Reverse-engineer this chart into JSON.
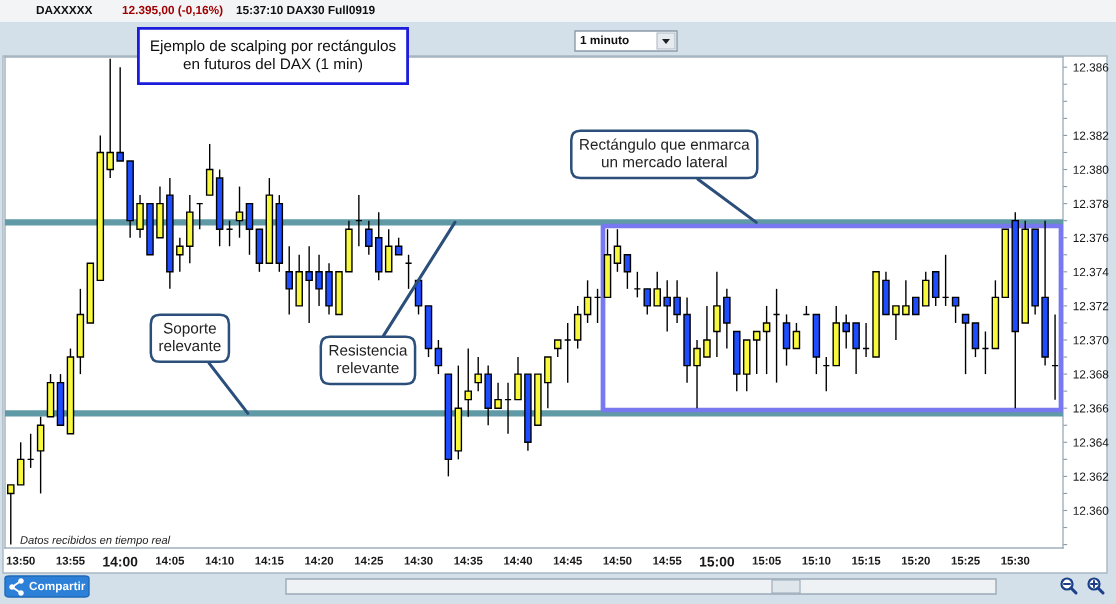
{
  "chart_data": {
    "type": "candlestick",
    "title": "Ejemplo de scalping por rectángulos\nen futuros del DAX (1 min)",
    "x": [
      13.8167,
      13.8333,
      13.85,
      13.8667,
      13.8833,
      13.9,
      13.9167,
      13.9333,
      13.95,
      13.9667,
      13.9833,
      14,
      14.0167,
      14.0333,
      14.05,
      14.0667,
      14.0833,
      14.1,
      14.1167,
      14.1333,
      14.15,
      14.1667,
      14.1833,
      14.2,
      14.2167,
      14.2333,
      14.25,
      14.2667,
      14.2833,
      14.3,
      14.3167,
      14.3333,
      14.35,
      14.3667,
      14.3833,
      14.4,
      14.4167,
      14.4333,
      14.45,
      14.4667,
      14.4833,
      14.5,
      14.5167,
      14.5333,
      14.55,
      14.5667,
      14.5833,
      14.6,
      14.6167,
      14.6333,
      14.65,
      14.6667,
      14.6833,
      14.7,
      14.7167,
      14.7333,
      14.75,
      14.7667,
      14.7833,
      14.8,
      14.8167,
      14.8333,
      14.85,
      14.8667,
      14.8833,
      14.9,
      14.9167,
      14.9333,
      14.95,
      14.9667,
      14.9833,
      15,
      15.0167,
      15.0333,
      15.05,
      15.0667,
      15.0833,
      15.1,
      15.1167,
      15.1333,
      15.15,
      15.1667,
      15.1833,
      15.2,
      15.2167,
      15.2333,
      15.25,
      15.2667,
      15.2833,
      15.3,
      15.3167,
      15.3333,
      15.35,
      15.3667,
      15.3833,
      15.4,
      15.4167,
      15.4333,
      15.45,
      15.4667,
      15.4833,
      15.5,
      15.5167,
      15.5333,
      15.55,
      15.5667
    ],
    "ohlc": [
      [
        12361,
        12361.5,
        12358,
        12361.5
      ],
      [
        12361.5,
        12364,
        12361.5,
        12363
      ],
      [
        12363,
        12364.5,
        12362.5,
        12363
      ],
      [
        12363.5,
        12365.5,
        12361,
        12365
      ],
      [
        12365.5,
        12368,
        12365.5,
        12367.5
      ],
      [
        12367.5,
        12368,
        12365,
        12365
      ],
      [
        12364.5,
        12369.5,
        12364.5,
        12369
      ],
      [
        12369,
        12373,
        12368,
        12371.5
      ],
      [
        12371,
        12374.5,
        12371,
        12374.5
      ],
      [
        12373.5,
        12382,
        12373.5,
        12381
      ],
      [
        12380,
        12386.5,
        12379.5,
        12381
      ],
      [
        12381,
        12386,
        12380.5,
        12380.5
      ],
      [
        12380.5,
        12380.5,
        12376,
        12377
      ],
      [
        12376.5,
        12378.5,
        12376,
        12378
      ],
      [
        12378,
        12378,
        12375,
        12375
      ],
      [
        12376,
        12379,
        12376,
        12378
      ],
      [
        12378.5,
        12379.5,
        12373,
        12374
      ],
      [
        12375,
        12376,
        12374,
        12375.5
      ],
      [
        12375.5,
        12378.5,
        12374.5,
        12377.5
      ],
      [
        12378,
        12378,
        12376.5,
        12378
      ],
      [
        12378.5,
        12381.5,
        12378.5,
        12380
      ],
      [
        12379.5,
        12380,
        12375.5,
        12376.5
      ],
      [
        12376.5,
        12377,
        12375.5,
        12376.5
      ],
      [
        12377,
        12379,
        12376,
        12377.5
      ],
      [
        12378,
        12378,
        12375,
        12376.5
      ],
      [
        12376.5,
        12376.5,
        12374,
        12374.5
      ],
      [
        12374.5,
        12379.5,
        12374.5,
        12378.5
      ],
      [
        12378,
        12378.5,
        12374,
        12374.5
      ],
      [
        12374,
        12375.5,
        12371.5,
        12373
      ],
      [
        12372,
        12375,
        12372,
        12374
      ],
      [
        12374,
        12375.5,
        12371,
        12373.5
      ],
      [
        12374,
        12375,
        12372,
        12373
      ],
      [
        12374,
        12374.5,
        12371.5,
        12372
      ],
      [
        12371.5,
        12374,
        12371.5,
        12374
      ],
      [
        12374,
        12377,
        12374,
        12376.5
      ],
      [
        12377,
        12378.5,
        12375.5,
        12377
      ],
      [
        12376.5,
        12377,
        12375,
        12375.5
      ],
      [
        12376,
        12377.5,
        12373.5,
        12374
      ],
      [
        12374,
        12376.5,
        12374,
        12375.5
      ],
      [
        12375.5,
        12376,
        12375,
        12375
      ],
      [
        12374.5,
        12375,
        12373,
        12374.5
      ],
      [
        12373.5,
        12373.5,
        12371.5,
        12372
      ],
      [
        12372,
        12372,
        12369,
        12369.5
      ],
      [
        12369.5,
        12370,
        12368,
        12368.5
      ],
      [
        12368,
        12368,
        12362,
        12363
      ],
      [
        12363.5,
        12368.5,
        12363,
        12366
      ],
      [
        12366.5,
        12369.5,
        12365.5,
        12367
      ],
      [
        12367.5,
        12369,
        12367,
        12368
      ],
      [
        12368,
        12368.5,
        12365,
        12366
      ],
      [
        12366,
        12367.5,
        12366,
        12366.5
      ],
      [
        12366.5,
        12367.5,
        12364.5,
        12366.5
      ],
      [
        12366.5,
        12369,
        12366.5,
        12368
      ],
      [
        12368,
        12368,
        12363.5,
        12364
      ],
      [
        12365,
        12368,
        12365,
        12368
      ],
      [
        12367.5,
        12369,
        12366,
        12369
      ],
      [
        12369.5,
        12370,
        12369,
        12370
      ],
      [
        12370,
        12371,
        12367.5,
        12370
      ],
      [
        12370,
        12372,
        12369.5,
        12371.5
      ],
      [
        12371.5,
        12373.5,
        12371,
        12372.5
      ],
      [
        12372.5,
        12373,
        12371,
        12372.5
      ],
      [
        12372.5,
        12376.5,
        12372.5,
        12375
      ],
      [
        12374.5,
        12376.5,
        12374,
        12375.5
      ],
      [
        12375,
        12375,
        12373,
        12374
      ],
      [
        12373,
        12374,
        12372.5,
        12373
      ],
      [
        12373,
        12373,
        12371.5,
        12372
      ],
      [
        12372,
        12374,
        12372,
        12373
      ],
      [
        12372.5,
        12373.5,
        12370.5,
        12372
      ],
      [
        12372.5,
        12373.5,
        12371,
        12371.5
      ],
      [
        12371.5,
        12372.5,
        12367.5,
        12368.5
      ],
      [
        12368.5,
        12370,
        12366,
        12369.5
      ],
      [
        12369,
        12372,
        12369,
        12370
      ],
      [
        12370.5,
        12374,
        12369,
        12372
      ],
      [
        12372.5,
        12373,
        12369.5,
        12371
      ],
      [
        12370.5,
        12370.5,
        12367,
        12368
      ],
      [
        12368,
        12370,
        12367,
        12370
      ],
      [
        12370,
        12370.5,
        12368,
        12370.5
      ],
      [
        12370.5,
        12372,
        12368,
        12371
      ],
      [
        12371.5,
        12373,
        12367.5,
        12371.5
      ],
      [
        12371,
        12371.5,
        12368.5,
        12369.5
      ],
      [
        12369.5,
        12371,
        12369.5,
        12370.5
      ],
      [
        12371.5,
        12372,
        12371.5,
        12371.5
      ],
      [
        12371.5,
        12371.5,
        12368,
        12369
      ],
      [
        12368.5,
        12369,
        12367,
        12368.5
      ],
      [
        12368.5,
        12372,
        12368.5,
        12371
      ],
      [
        12371,
        12371.5,
        12369.5,
        12370.5
      ],
      [
        12371,
        12371,
        12368,
        12369.5
      ],
      [
        12369.5,
        12371,
        12369,
        12369.5
      ],
      [
        12369,
        12374,
        12369,
        12374
      ],
      [
        12373.5,
        12374,
        12371.5,
        12371.5
      ],
      [
        12371.5,
        12372,
        12370,
        12372
      ],
      [
        12371.5,
        12373.5,
        12371.5,
        12372
      ],
      [
        12372.5,
        12372.5,
        12371.5,
        12371.5
      ],
      [
        12372,
        12374,
        12372,
        12373.5
      ],
      [
        12374,
        12374,
        12372,
        12372.5
      ],
      [
        12372.5,
        12375,
        12372,
        12372.5
      ],
      [
        12372.5,
        12372.5,
        12371,
        12372
      ],
      [
        12371.5,
        12371.5,
        12368,
        12371
      ],
      [
        12371,
        12371,
        12369,
        12369.5
      ],
      [
        12369.5,
        12370.5,
        12368,
        12369.5
      ],
      [
        12369.5,
        12373.5,
        12369.5,
        12372.5
      ],
      [
        12372.5,
        12376.5,
        12372.5,
        12376.5
      ],
      [
        12377,
        12377.5,
        12366,
        12370.5
      ],
      [
        12371,
        12377,
        12371,
        12376.5
      ],
      [
        12376.5,
        12376.5,
        12371.5,
        12372
      ],
      [
        12372.5,
        12377,
        12368.5,
        12369
      ],
      [
        12368.5,
        12371.5,
        12366.5,
        12368.5
      ]
    ],
    "colors": [
      "#f8f83c",
      "#f8f83c",
      "#000000",
      "#f8f83c",
      "#f8f83c",
      "#1e4cff",
      "#f8f83c",
      "#f8f83c",
      "#f8f83c",
      "#f8f83c",
      "#f8f83c",
      "#1e4cff",
      "#1e4cff",
      "#f8f83c",
      "#1e4cff",
      "#f8f83c",
      "#1e4cff",
      "#f8f83c",
      "#f8f83c",
      "#000000",
      "#f8f83c",
      "#1e4cff",
      "#000000",
      "#f8f83c",
      "#1e4cff",
      "#1e4cff",
      "#f8f83c",
      "#1e4cff",
      "#1e4cff",
      "#f8f83c",
      "#1e4cff",
      "#1e4cff",
      "#1e4cff",
      "#f8f83c",
      "#f8f83c",
      "#000000",
      "#1e4cff",
      "#1e4cff",
      "#f8f83c",
      "#1e4cff",
      "#000000",
      "#1e4cff",
      "#1e4cff",
      "#1e4cff",
      "#1e4cff",
      "#f8f83c",
      "#f8f83c",
      "#f8f83c",
      "#1e4cff",
      "#f8f83c",
      "#000000",
      "#f8f83c",
      "#1e4cff",
      "#f8f83c",
      "#f8f83c",
      "#f8f83c",
      "#000000",
      "#f8f83c",
      "#f8f83c",
      "#000000",
      "#f8f83c",
      "#f8f83c",
      "#1e4cff",
      "#000000",
      "#1e4cff",
      "#f8f83c",
      "#1e4cff",
      "#1e4cff",
      "#1e4cff",
      "#f8f83c",
      "#f8f83c",
      "#f8f83c",
      "#1e4cff",
      "#1e4cff",
      "#f8f83c",
      "#f8f83c",
      "#f8f83c",
      "#000000",
      "#1e4cff",
      "#f8f83c",
      "#000000",
      "#1e4cff",
      "#000000",
      "#f8f83c",
      "#1e4cff",
      "#1e4cff",
      "#000000",
      "#f8f83c",
      "#1e4cff",
      "#f8f83c",
      "#f8f83c",
      "#1e4cff",
      "#f8f83c",
      "#1e4cff",
      "#000000",
      "#1e4cff",
      "#1e4cff",
      "#1e4cff",
      "#000000",
      "#f8f83c",
      "#f8f83c",
      "#1e4cff",
      "#f8f83c",
      "#1e4cff",
      "#1e4cff",
      "#000000"
    ],
    "ref_lines": [
      {
        "axis": "y",
        "value": 12376.9,
        "color": "#5f9aa6"
      },
      {
        "axis": "y",
        "value": 12365.7,
        "color": "#5f9aa6"
      }
    ],
    "xlim": [
      13.807,
      15.58
    ],
    "xticks": [
      {
        "value": 13.8333,
        "label": "13:50"
      },
      {
        "value": 13.9167,
        "label": "13:55"
      },
      {
        "value": 14,
        "label": "14:00"
      },
      {
        "value": 14.0833,
        "label": "14:05"
      },
      {
        "value": 14.1667,
        "label": "14:10"
      },
      {
        "value": 14.25,
        "label": "14:15"
      },
      {
        "value": 14.3333,
        "label": "14:20"
      },
      {
        "value": 14.4167,
        "label": "14:25"
      },
      {
        "value": 14.5,
        "label": "14:30"
      },
      {
        "value": 14.5833,
        "label": "14:35"
      },
      {
        "value": 14.6667,
        "label": "14:40"
      },
      {
        "value": 14.75,
        "label": "14:45"
      },
      {
        "value": 14.8333,
        "label": "14:50"
      },
      {
        "value": 14.9167,
        "label": "14:55"
      },
      {
        "value": 15,
        "label": "15:00"
      },
      {
        "value": 15.0833,
        "label": "15:05"
      },
      {
        "value": 15.1667,
        "label": "15:10"
      },
      {
        "value": 15.25,
        "label": "15:15"
      },
      {
        "value": 15.3333,
        "label": "15:20"
      },
      {
        "value": 15.4167,
        "label": "15:25"
      },
      {
        "value": 15.5,
        "label": "15:30"
      }
    ],
    "ylim": [
      12357.8,
      12386.6
    ],
    "yticks": [
      {
        "value": 12358,
        "label": null
      },
      {
        "value": 12359,
        "label": null
      },
      {
        "value": 12360,
        "label": "12.360"
      },
      {
        "value": 12361,
        "label": null
      },
      {
        "value": 12362,
        "label": "12.362"
      },
      {
        "value": 12363,
        "label": null
      },
      {
        "value": 12364,
        "label": "12.364"
      },
      {
        "value": 12365,
        "label": null
      },
      {
        "value": 12366,
        "label": "12.366"
      },
      {
        "value": 12367,
        "label": null
      },
      {
        "value": 12368,
        "label": "12.368"
      },
      {
        "value": 12369,
        "label": null
      },
      {
        "value": 12370,
        "label": "12.370"
      },
      {
        "value": 12371,
        "label": null
      },
      {
        "value": 12372,
        "label": "12.372"
      },
      {
        "value": 12373,
        "label": null
      },
      {
        "value": 12374,
        "label": "12.374"
      },
      {
        "value": 12375,
        "label": null
      },
      {
        "value": 12376,
        "label": "12.376"
      },
      {
        "value": 12377,
        "label": null
      },
      {
        "value": 12378,
        "label": "12.378"
      },
      {
        "value": 12379,
        "label": null
      },
      {
        "value": 12380,
        "label": "12.380"
      },
      {
        "value": 12381,
        "label": null
      },
      {
        "value": 12382,
        "label": "12.382"
      },
      {
        "value": 12383,
        "label": null
      },
      {
        "value": 12384,
        "label": null
      },
      {
        "value": 12385,
        "label": null
      },
      {
        "value": 12386,
        "label": "12.386"
      }
    ],
    "annotations": [
      {
        "text": "Rectángulo que enmarca\nun mercado lateral",
        "x": 15.066,
        "y": 12376.9
      },
      {
        "text": "Soporte\nrelevante",
        "x": 14.214,
        "y": 12365.7
      },
      {
        "text": "Resistencia\nrelevante",
        "x": 14.561,
        "y": 12376.9
      },
      "Datos recibidos en tiempo real",
      "DAXXXXX",
      "12.395,00 (-0,16%)",
      "15:37:10 DAX30 Full0919",
      "1 minuto",
      "Compartir"
    ]
  }
}
